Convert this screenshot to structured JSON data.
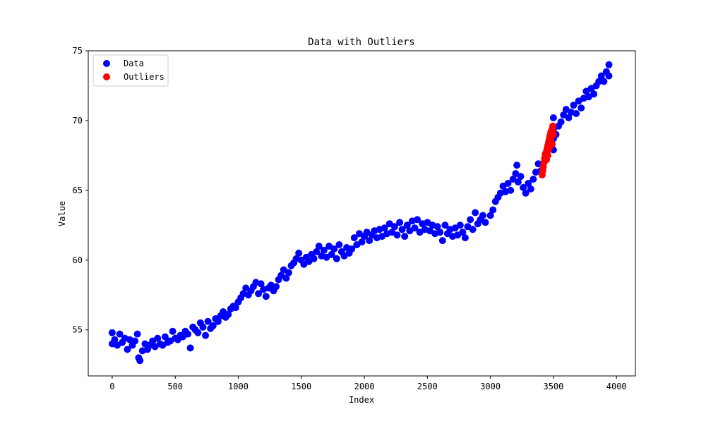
{
  "chart_data": {
    "type": "scatter",
    "title": "Data with Outliers",
    "xlabel": "Index",
    "ylabel": "Value",
    "xlim": [
      -190,
      4150
    ],
    "ylim": [
      51.7,
      75
    ],
    "xticks": [
      0,
      500,
      1000,
      1500,
      2000,
      2500,
      3000,
      3500,
      4000
    ],
    "yticks": [
      55,
      60,
      65,
      70,
      75
    ],
    "grid": false,
    "legend": {
      "position": "top-left",
      "entries": [
        "Data",
        "Outliers"
      ]
    },
    "colors": {
      "Data": "#0000ff",
      "Outliers": "#ff0000"
    },
    "series": [
      {
        "name": "Data",
        "color": "#0000ff",
        "points": [
          [
            0,
            54.8
          ],
          [
            0,
            54.0
          ],
          [
            20,
            54.3
          ],
          [
            40,
            53.9
          ],
          [
            60,
            54.7
          ],
          [
            80,
            54.1
          ],
          [
            100,
            54.4
          ],
          [
            120,
            53.6
          ],
          [
            140,
            54.3
          ],
          [
            160,
            53.9
          ],
          [
            180,
            54.2
          ],
          [
            200,
            54.7
          ],
          [
            210,
            53.0
          ],
          [
            220,
            52.8
          ],
          [
            240,
            53.5
          ],
          [
            260,
            54.0
          ],
          [
            280,
            53.6
          ],
          [
            300,
            53.9
          ],
          [
            320,
            54.2
          ],
          [
            340,
            53.8
          ],
          [
            360,
            54.4
          ],
          [
            380,
            54.0
          ],
          [
            400,
            53.9
          ],
          [
            420,
            54.5
          ],
          [
            440,
            54.1
          ],
          [
            460,
            54.2
          ],
          [
            480,
            54.9
          ],
          [
            500,
            54.4
          ],
          [
            520,
            54.3
          ],
          [
            540,
            54.6
          ],
          [
            560,
            54.5
          ],
          [
            580,
            54.9
          ],
          [
            600,
            54.7
          ],
          [
            620,
            53.7
          ],
          [
            640,
            55.2
          ],
          [
            660,
            55.0
          ],
          [
            680,
            54.8
          ],
          [
            700,
            55.5
          ],
          [
            720,
            55.2
          ],
          [
            740,
            54.6
          ],
          [
            760,
            55.6
          ],
          [
            780,
            55.1
          ],
          [
            800,
            55.3
          ],
          [
            820,
            55.8
          ],
          [
            840,
            55.6
          ],
          [
            860,
            56.0
          ],
          [
            880,
            56.3
          ],
          [
            900,
            55.9
          ],
          [
            920,
            56.1
          ],
          [
            940,
            56.5
          ],
          [
            960,
            56.7
          ],
          [
            980,
            56.6
          ],
          [
            1000,
            57.0
          ],
          [
            1020,
            57.3
          ],
          [
            1040,
            57.6
          ],
          [
            1060,
            58.0
          ],
          [
            1080,
            57.5
          ],
          [
            1100,
            57.8
          ],
          [
            1120,
            58.1
          ],
          [
            1140,
            58.4
          ],
          [
            1160,
            57.6
          ],
          [
            1180,
            58.3
          ],
          [
            1200,
            57.9
          ],
          [
            1220,
            57.4
          ],
          [
            1240,
            58.0
          ],
          [
            1260,
            58.2
          ],
          [
            1280,
            57.8
          ],
          [
            1300,
            58.1
          ],
          [
            1320,
            58.6
          ],
          [
            1340,
            58.9
          ],
          [
            1360,
            59.3
          ],
          [
            1380,
            58.7
          ],
          [
            1400,
            59.1
          ],
          [
            1420,
            59.6
          ],
          [
            1440,
            59.8
          ],
          [
            1460,
            60.1
          ],
          [
            1480,
            60.5
          ],
          [
            1500,
            60.0
          ],
          [
            1520,
            59.7
          ],
          [
            1540,
            60.2
          ],
          [
            1560,
            59.9
          ],
          [
            1580,
            60.4
          ],
          [
            1600,
            60.1
          ],
          [
            1620,
            60.6
          ],
          [
            1640,
            61.0
          ],
          [
            1660,
            60.3
          ],
          [
            1680,
            60.7
          ],
          [
            1700,
            60.2
          ],
          [
            1720,
            61.0
          ],
          [
            1740,
            60.4
          ],
          [
            1760,
            60.8
          ],
          [
            1780,
            60.1
          ],
          [
            1800,
            61.1
          ],
          [
            1820,
            60.6
          ],
          [
            1840,
            60.3
          ],
          [
            1860,
            60.9
          ],
          [
            1880,
            60.5
          ],
          [
            1900,
            60.8
          ],
          [
            1920,
            61.6
          ],
          [
            1940,
            61.1
          ],
          [
            1960,
            61.9
          ],
          [
            1980,
            61.3
          ],
          [
            2000,
            61.7
          ],
          [
            2020,
            62.0
          ],
          [
            2040,
            61.4
          ],
          [
            2060,
            61.8
          ],
          [
            2080,
            62.1
          ],
          [
            2100,
            61.6
          ],
          [
            2120,
            62.2
          ],
          [
            2140,
            61.7
          ],
          [
            2160,
            62.3
          ],
          [
            2180,
            61.9
          ],
          [
            2200,
            62.6
          ],
          [
            2220,
            62.0
          ],
          [
            2240,
            62.4
          ],
          [
            2260,
            61.8
          ],
          [
            2280,
            62.7
          ],
          [
            2300,
            62.2
          ],
          [
            2320,
            61.7
          ],
          [
            2340,
            62.5
          ],
          [
            2360,
            62.1
          ],
          [
            2380,
            62.8
          ],
          [
            2400,
            62.3
          ],
          [
            2420,
            62.9
          ],
          [
            2440,
            62.0
          ],
          [
            2460,
            62.6
          ],
          [
            2480,
            62.2
          ],
          [
            2500,
            62.7
          ],
          [
            2520,
            62.1
          ],
          [
            2540,
            62.5
          ],
          [
            2560,
            61.9
          ],
          [
            2580,
            62.4
          ],
          [
            2600,
            62.0
          ],
          [
            2620,
            61.4
          ],
          [
            2640,
            62.5
          ],
          [
            2660,
            61.9
          ],
          [
            2680,
            62.2
          ],
          [
            2700,
            61.7
          ],
          [
            2720,
            62.3
          ],
          [
            2740,
            61.8
          ],
          [
            2760,
            62.5
          ],
          [
            2780,
            62.0
          ],
          [
            2800,
            61.6
          ],
          [
            2820,
            62.4
          ],
          [
            2840,
            62.9
          ],
          [
            2860,
            62.2
          ],
          [
            2880,
            63.4
          ],
          [
            2900,
            62.6
          ],
          [
            2920,
            62.9
          ],
          [
            2940,
            63.2
          ],
          [
            2960,
            62.7
          ],
          [
            3000,
            63.2
          ],
          [
            3020,
            63.6
          ],
          [
            3040,
            64.2
          ],
          [
            3060,
            64.5
          ],
          [
            3080,
            64.8
          ],
          [
            3100,
            65.3
          ],
          [
            3120,
            64.9
          ],
          [
            3140,
            65.5
          ],
          [
            3160,
            65.0
          ],
          [
            3180,
            65.8
          ],
          [
            3200,
            66.2
          ],
          [
            3210,
            66.8
          ],
          [
            3220,
            65.6
          ],
          [
            3240,
            66.0
          ],
          [
            3260,
            65.2
          ],
          [
            3280,
            64.8
          ],
          [
            3300,
            65.5
          ],
          [
            3320,
            65.1
          ],
          [
            3340,
            65.8
          ],
          [
            3360,
            66.3
          ],
          [
            3380,
            66.9
          ],
          [
            3400,
            66.4
          ],
          [
            3500,
            67.9
          ],
          [
            3500,
            68.7
          ],
          [
            3500,
            69.4
          ],
          [
            3500,
            70.2
          ],
          [
            3520,
            69.0
          ],
          [
            3540,
            69.6
          ],
          [
            3560,
            69.9
          ],
          [
            3580,
            70.4
          ],
          [
            3600,
            70.8
          ],
          [
            3620,
            70.2
          ],
          [
            3640,
            70.6
          ],
          [
            3660,
            71.1
          ],
          [
            3680,
            70.5
          ],
          [
            3700,
            71.4
          ],
          [
            3720,
            70.9
          ],
          [
            3740,
            71.6
          ],
          [
            3760,
            72.1
          ],
          [
            3780,
            71.7
          ],
          [
            3800,
            72.3
          ],
          [
            3820,
            71.9
          ],
          [
            3840,
            72.5
          ],
          [
            3860,
            72.8
          ],
          [
            3880,
            73.2
          ],
          [
            3900,
            72.8
          ],
          [
            3920,
            73.5
          ],
          [
            3940,
            73.2
          ],
          [
            3940,
            74.0
          ]
        ]
      },
      {
        "name": "Outliers",
        "color": "#ff0000",
        "points": [
          [
            3410,
            66.1
          ],
          [
            3415,
            66.4
          ],
          [
            3420,
            66.7
          ],
          [
            3425,
            67.0
          ],
          [
            3430,
            67.3
          ],
          [
            3435,
            67.6
          ],
          [
            3440,
            67.4
          ],
          [
            3445,
            67.8
          ],
          [
            3450,
            68.0
          ],
          [
            3455,
            68.2
          ],
          [
            3460,
            68.4
          ],
          [
            3465,
            68.6
          ],
          [
            3470,
            68.8
          ],
          [
            3475,
            69.0
          ],
          [
            3480,
            69.2
          ],
          [
            3485,
            68.9
          ],
          [
            3490,
            69.4
          ],
          [
            3495,
            69.6
          ],
          [
            3500,
            69.0
          ],
          [
            3470,
            68.1
          ],
          [
            3445,
            67.2
          ],
          [
            3460,
            67.9
          ],
          [
            3480,
            68.5
          ],
          [
            3490,
            68.3
          ],
          [
            3455,
            67.5
          ]
        ]
      }
    ]
  }
}
